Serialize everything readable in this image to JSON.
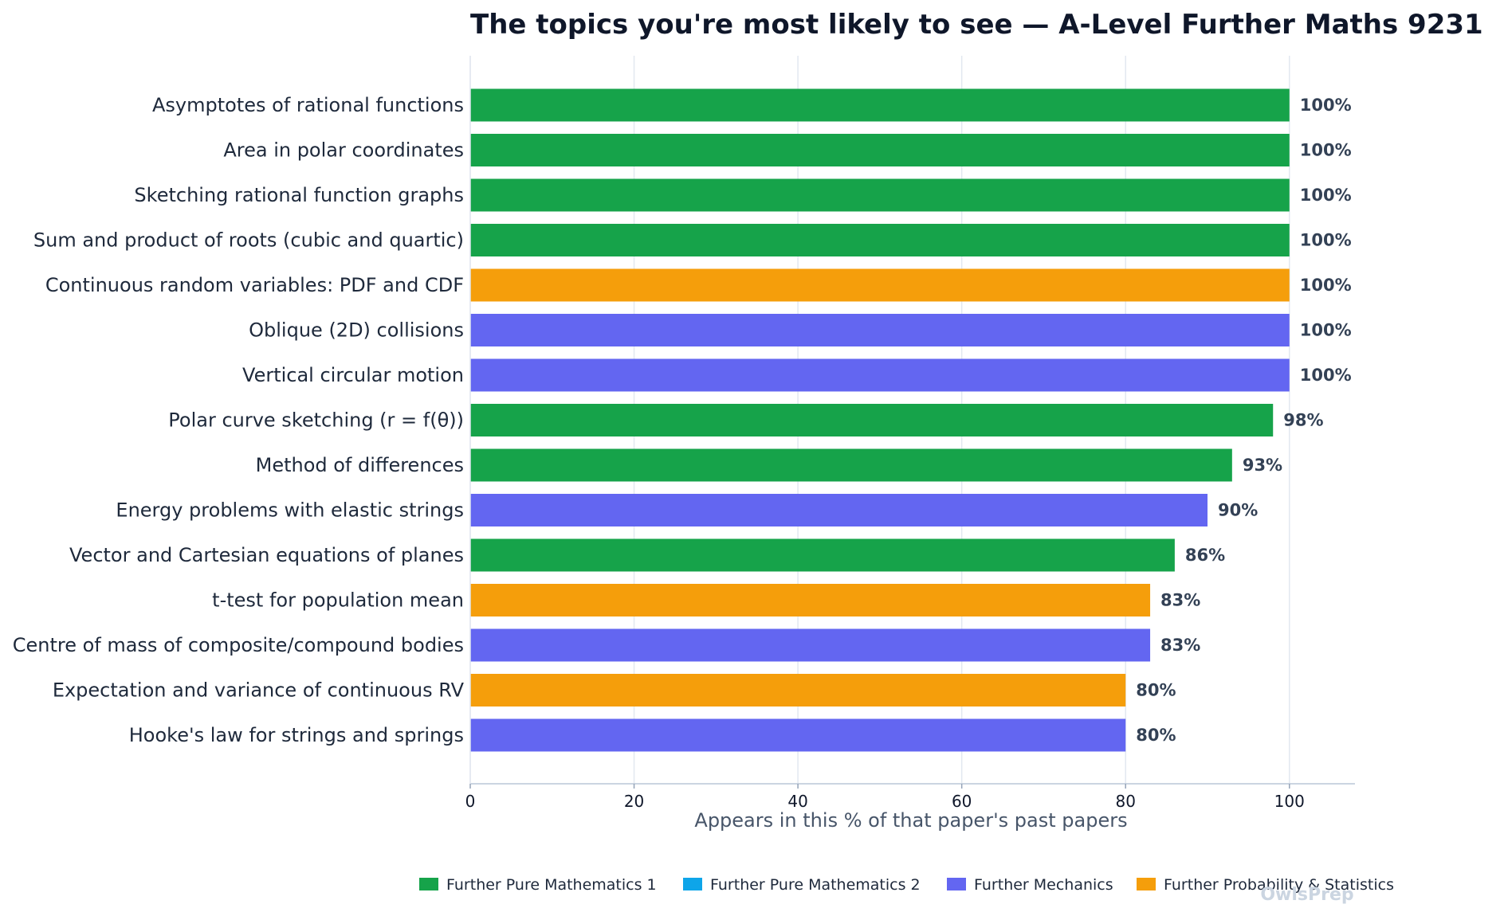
{
  "chart_data": {
    "type": "bar",
    "orientation": "horizontal",
    "title": "The topics you're most likely to see — A-Level Further Maths 9231",
    "xlabel": "Appears in this % of that paper's past papers",
    "ylabel": "",
    "xlim": [
      0,
      108
    ],
    "xticks": [
      0,
      20,
      40,
      60,
      80,
      100
    ],
    "grid": "vertical",
    "legend_position": "bottom",
    "categories": [
      "Asymptotes of rational functions",
      "Area in polar coordinates",
      "Sketching rational function graphs",
      "Sum and product of roots (cubic and quartic)",
      "Continuous random variables: PDF and CDF",
      "Oblique (2D) collisions",
      "Vertical circular motion",
      "Polar curve sketching (r = f(θ))",
      "Method of differences",
      "Energy problems with elastic strings",
      "Vector and Cartesian equations of planes",
      "t-test for population mean",
      "Centre of mass of composite/compound bodies",
      "Expectation and variance of continuous RV",
      "Hooke's law for strings and springs"
    ],
    "values": [
      100,
      100,
      100,
      100,
      100,
      100,
      100,
      98,
      93,
      90,
      86,
      83,
      83,
      80,
      80
    ],
    "value_labels": [
      "100%",
      "100%",
      "100%",
      "100%",
      "100%",
      "100%",
      "100%",
      "98%",
      "93%",
      "90%",
      "86%",
      "83%",
      "83%",
      "80%",
      "80%"
    ],
    "bar_groups": [
      0,
      0,
      0,
      0,
      3,
      2,
      2,
      0,
      0,
      2,
      0,
      3,
      2,
      3,
      2
    ],
    "legend": [
      {
        "name": "Further Pure Mathematics 1",
        "color": "#16a34a"
      },
      {
        "name": "Further Pure Mathematics 2",
        "color": "#0ea5e9"
      },
      {
        "name": "Further Mechanics",
        "color": "#6366f1"
      },
      {
        "name": "Further Probability & Statistics",
        "color": "#f59e0b"
      }
    ]
  },
  "watermark": "OwlsPrep"
}
